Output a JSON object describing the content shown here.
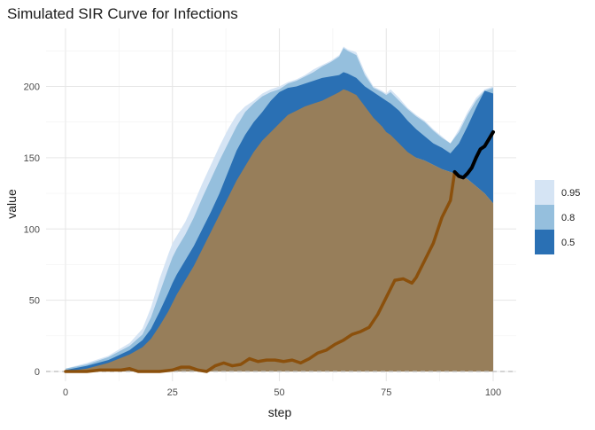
{
  "chart_data": {
    "type": "area",
    "title": "Simulated SIR Curve for Infections",
    "xlabel": "step",
    "ylabel": "value",
    "xlim": [
      0,
      100
    ],
    "ylim": [
      0,
      230
    ],
    "x_ticks": [
      0,
      25,
      50,
      75,
      100
    ],
    "y_ticks": [
      0,
      50,
      100,
      150,
      200
    ],
    "grid": true,
    "legend_position": "right",
    "legend": {
      "title": "",
      "entries": [
        {
          "label": "0.95",
          "color": "#d5e4f4"
        },
        {
          "label": "0.8",
          "color": "#95bfdd"
        },
        {
          "label": "0.5",
          "color": "#2a70b4"
        }
      ]
    },
    "reference_line": {
      "y": 0,
      "style": "dashed",
      "color": "#bbbbbb"
    },
    "bands": [
      {
        "level": "0.95",
        "color": "#d5e4f4",
        "x": [
          0,
          5,
          10,
          15,
          18,
          20,
          22,
          24,
          25,
          26,
          28,
          30,
          32,
          34,
          36,
          38,
          40,
          42,
          44,
          46,
          48,
          50,
          52,
          54,
          56,
          58,
          60,
          62,
          64,
          65,
          66,
          68,
          70,
          72,
          74,
          75,
          76,
          78,
          80,
          82,
          84,
          86,
          88,
          90,
          92,
          94,
          96,
          98,
          100
        ],
        "upper": [
          2,
          6,
          11,
          20,
          30,
          45,
          65,
          82,
          90,
          95,
          105,
          118,
          132,
          145,
          158,
          170,
          180,
          186,
          190,
          195,
          198,
          200,
          203,
          205,
          208,
          212,
          215,
          218,
          222,
          228,
          226,
          224,
          210,
          200,
          197,
          195,
          198,
          192,
          185,
          180,
          176,
          170,
          165,
          160,
          170,
          182,
          192,
          198,
          200
        ],
        "lower": [
          0,
          0,
          0,
          2,
          3,
          4,
          5,
          6,
          8,
          10,
          14,
          18,
          22,
          28,
          36,
          45,
          55,
          68,
          80,
          92,
          105,
          118,
          130,
          142,
          154,
          162,
          170,
          176,
          180,
          182,
          181,
          176,
          170,
          165,
          162,
          160,
          158,
          156,
          153,
          150,
          148,
          145,
          142,
          140,
          138,
          135,
          130,
          125,
          118
        ]
      },
      {
        "level": "0.8",
        "color": "#95bfdd",
        "x": [
          0,
          5,
          10,
          15,
          18,
          20,
          22,
          24,
          25,
          26,
          28,
          30,
          32,
          34,
          36,
          38,
          40,
          42,
          44,
          46,
          48,
          50,
          52,
          54,
          56,
          58,
          60,
          62,
          64,
          65,
          66,
          68,
          70,
          72,
          74,
          75,
          76,
          78,
          80,
          82,
          84,
          86,
          88,
          90,
          92,
          94,
          96,
          98,
          100
        ],
        "upper": [
          2,
          5,
          10,
          18,
          26,
          38,
          55,
          72,
          80,
          86,
          96,
          108,
          122,
          135,
          148,
          160,
          172,
          182,
          188,
          193,
          196,
          198,
          202,
          204,
          207,
          210,
          214,
          217,
          221,
          227,
          225,
          222,
          208,
          199,
          196,
          194,
          196,
          190,
          184,
          179,
          175,
          169,
          164,
          160,
          168,
          180,
          190,
          197,
          199
        ],
        "lower": [
          0,
          0,
          0,
          2,
          3,
          4,
          5,
          6,
          8,
          10,
          14,
          18,
          22,
          28,
          36,
          45,
          55,
          68,
          80,
          92,
          105,
          118,
          130,
          142,
          154,
          162,
          170,
          176,
          180,
          182,
          181,
          176,
          170,
          165,
          162,
          160,
          158,
          156,
          153,
          150,
          148,
          145,
          142,
          140,
          138,
          135,
          130,
          125,
          118
        ]
      },
      {
        "level": "0.5",
        "color": "#2a70b4",
        "x": [
          0,
          5,
          10,
          15,
          18,
          20,
          22,
          24,
          25,
          26,
          28,
          30,
          32,
          34,
          36,
          38,
          40,
          42,
          44,
          46,
          48,
          50,
          52,
          54,
          56,
          58,
          60,
          62,
          64,
          65,
          66,
          68,
          70,
          72,
          74,
          75,
          76,
          78,
          80,
          82,
          84,
          86,
          88,
          90,
          92,
          94,
          96,
          98,
          100
        ],
        "upper": [
          1,
          4,
          8,
          15,
          22,
          30,
          42,
          55,
          62,
          68,
          78,
          88,
          100,
          112,
          125,
          140,
          155,
          166,
          175,
          182,
          190,
          196,
          199,
          200,
          202,
          204,
          206,
          207,
          208,
          210,
          209,
          206,
          200,
          196,
          192,
          190,
          188,
          183,
          176,
          170,
          165,
          160,
          157,
          153,
          160,
          172,
          185,
          197,
          195
        ],
        "lower": [
          0,
          0,
          0,
          2,
          3,
          4,
          5,
          6,
          8,
          10,
          14,
          18,
          22,
          28,
          36,
          45,
          55,
          68,
          80,
          92,
          105,
          118,
          130,
          142,
          154,
          162,
          170,
          176,
          180,
          182,
          181,
          176,
          170,
          165,
          162,
          160,
          158,
          156,
          153,
          150,
          148,
          145,
          142,
          140,
          138,
          135,
          130,
          125,
          118
        ]
      }
    ],
    "series": [
      {
        "role": "median-area",
        "color": "#977e5a",
        "x": [
          0,
          5,
          10,
          15,
          18,
          20,
          22,
          24,
          25,
          26,
          28,
          30,
          32,
          34,
          36,
          38,
          40,
          42,
          44,
          46,
          48,
          50,
          52,
          54,
          56,
          58,
          60,
          62,
          64,
          65,
          66,
          68,
          70,
          72,
          74,
          75,
          76,
          78,
          80,
          82,
          84,
          86,
          88,
          90,
          92,
          94,
          96,
          98,
          100
        ],
        "y": [
          0,
          2,
          6,
          12,
          17,
          23,
          32,
          42,
          48,
          54,
          64,
          74,
          86,
          98,
          110,
          122,
          134,
          144,
          154,
          162,
          168,
          174,
          180,
          183,
          186,
          188,
          190,
          193,
          196,
          198,
          197,
          194,
          186,
          178,
          172,
          168,
          166,
          160,
          154,
          150,
          148,
          145,
          142,
          140,
          138,
          135,
          130,
          125,
          118
        ]
      },
      {
        "role": "observed",
        "color": "#8b500c",
        "x": [
          0,
          5,
          8,
          10,
          13,
          15,
          17,
          19,
          22,
          25,
          27,
          29,
          31,
          33,
          35,
          37,
          39,
          41,
          43,
          45,
          47,
          49,
          51,
          53,
          55,
          57,
          59,
          61,
          63,
          65,
          67,
          69,
          71,
          73,
          75,
          77,
          79,
          81,
          82,
          84,
          86,
          88,
          90,
          91
        ],
        "y": [
          0,
          0,
          1,
          1,
          1,
          2,
          0,
          0,
          0,
          1,
          3,
          3,
          1,
          0,
          4,
          6,
          4,
          5,
          9,
          7,
          8,
          8,
          7,
          8,
          6,
          9,
          13,
          15,
          19,
          22,
          26,
          28,
          31,
          40,
          52,
          64,
          65,
          62,
          66,
          78,
          90,
          108,
          120,
          140
        ]
      },
      {
        "role": "forecast",
        "color": "#000000",
        "x": [
          91,
          92,
          93,
          94,
          95,
          96,
          97,
          98,
          99,
          100
        ],
        "y": [
          140,
          137,
          136,
          139,
          143,
          150,
          156,
          158,
          163,
          168
        ]
      }
    ]
  }
}
